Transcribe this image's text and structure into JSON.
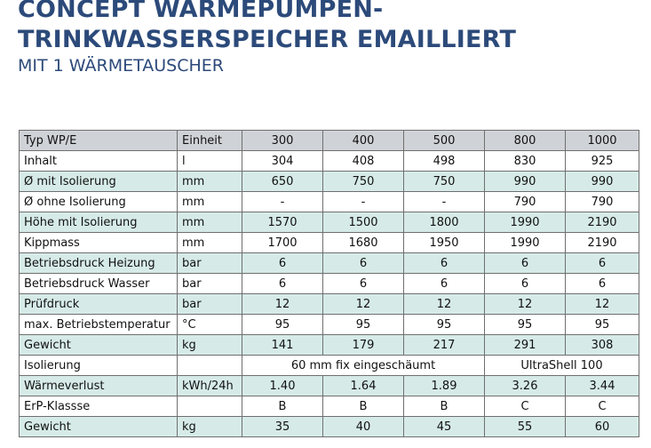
{
  "heading": {
    "title_line1": "CONCEPT WÄRMEPUMPEN-",
    "title_line2": "TRINKWASSERSPEICHER EMAILLIERT",
    "subtitle": "MIT 1 WÄRMETAUSCHER"
  },
  "colors": {
    "title": "#2c4a7a",
    "header_row": "#cfd2d6",
    "teal_row": "#d6ebe8",
    "white_row": "#ffffff",
    "border": "#6f6f6f"
  },
  "table": {
    "header": {
      "label": "Typ WP/E",
      "unit": "Einheit",
      "models": [
        "300",
        "400",
        "500",
        "800",
        "1000"
      ]
    },
    "rows": [
      {
        "label": "Inhalt",
        "unit": "l",
        "values": [
          "304",
          "408",
          "498",
          "830",
          "925"
        ]
      },
      {
        "label": "Ø mit Isolierung",
        "unit": "mm",
        "values": [
          "650",
          "750",
          "750",
          "990",
          "990"
        ]
      },
      {
        "label": "Ø ohne Isolierung",
        "unit": "mm",
        "values": [
          "-",
          "-",
          "-",
          "790",
          "790"
        ]
      },
      {
        "label": "Höhe mit Isolierung",
        "unit": "mm",
        "values": [
          "1570",
          "1500",
          "1800",
          "1990",
          "2190"
        ]
      },
      {
        "label": "Kippmass",
        "unit": "mm",
        "values": [
          "1700",
          "1680",
          "1950",
          "1990",
          "2190"
        ]
      },
      {
        "label": "Betriebsdruck Heizung",
        "unit": "bar",
        "values": [
          "6",
          "6",
          "6",
          "6",
          "6"
        ]
      },
      {
        "label": "Betriebsdruck Wasser",
        "unit": "bar",
        "values": [
          "6",
          "6",
          "6",
          "6",
          "6"
        ]
      },
      {
        "label": "Prüfdruck",
        "unit": "bar",
        "values": [
          "12",
          "12",
          "12",
          "12",
          "12"
        ]
      },
      {
        "label": "max. Betriebstemperatur",
        "unit": "°C",
        "values": [
          "95",
          "95",
          "95",
          "95",
          "95"
        ]
      },
      {
        "label": "Gewicht",
        "unit": "kg",
        "values": [
          "141",
          "179",
          "217",
          "291",
          "308"
        ]
      }
    ],
    "isolation_row": {
      "label": "Isolierung",
      "unit": "",
      "value_small": "60 mm fix eingeschäumt",
      "value_large": "UltraShell 100"
    },
    "rows_after": [
      {
        "label": "Wärmeverlust",
        "unit": "kWh/24h",
        "values": [
          "1.40",
          "1.64",
          "1.89",
          "3.26",
          "3.44"
        ]
      },
      {
        "label": "ErP-Klassse",
        "unit": "",
        "values": [
          "B",
          "B",
          "B",
          "C",
          "C"
        ]
      },
      {
        "label": "Gewicht",
        "unit": "kg",
        "values": [
          "35",
          "40",
          "45",
          "55",
          "60"
        ]
      }
    ]
  }
}
